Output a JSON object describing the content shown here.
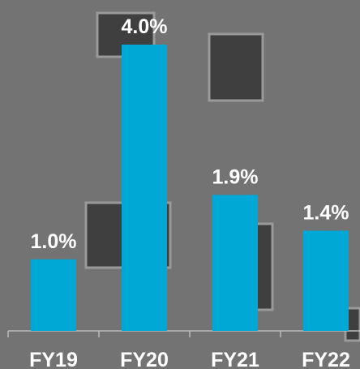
{
  "chart_data": {
    "type": "bar",
    "categories": [
      "FY19",
      "FY20",
      "FY21",
      "FY22"
    ],
    "values": [
      1.0,
      4.0,
      1.9,
      1.4
    ],
    "value_labels": [
      "1.0%",
      "4.0%",
      "1.9%",
      "1.4%"
    ],
    "color": "#00a8d6"
  }
}
